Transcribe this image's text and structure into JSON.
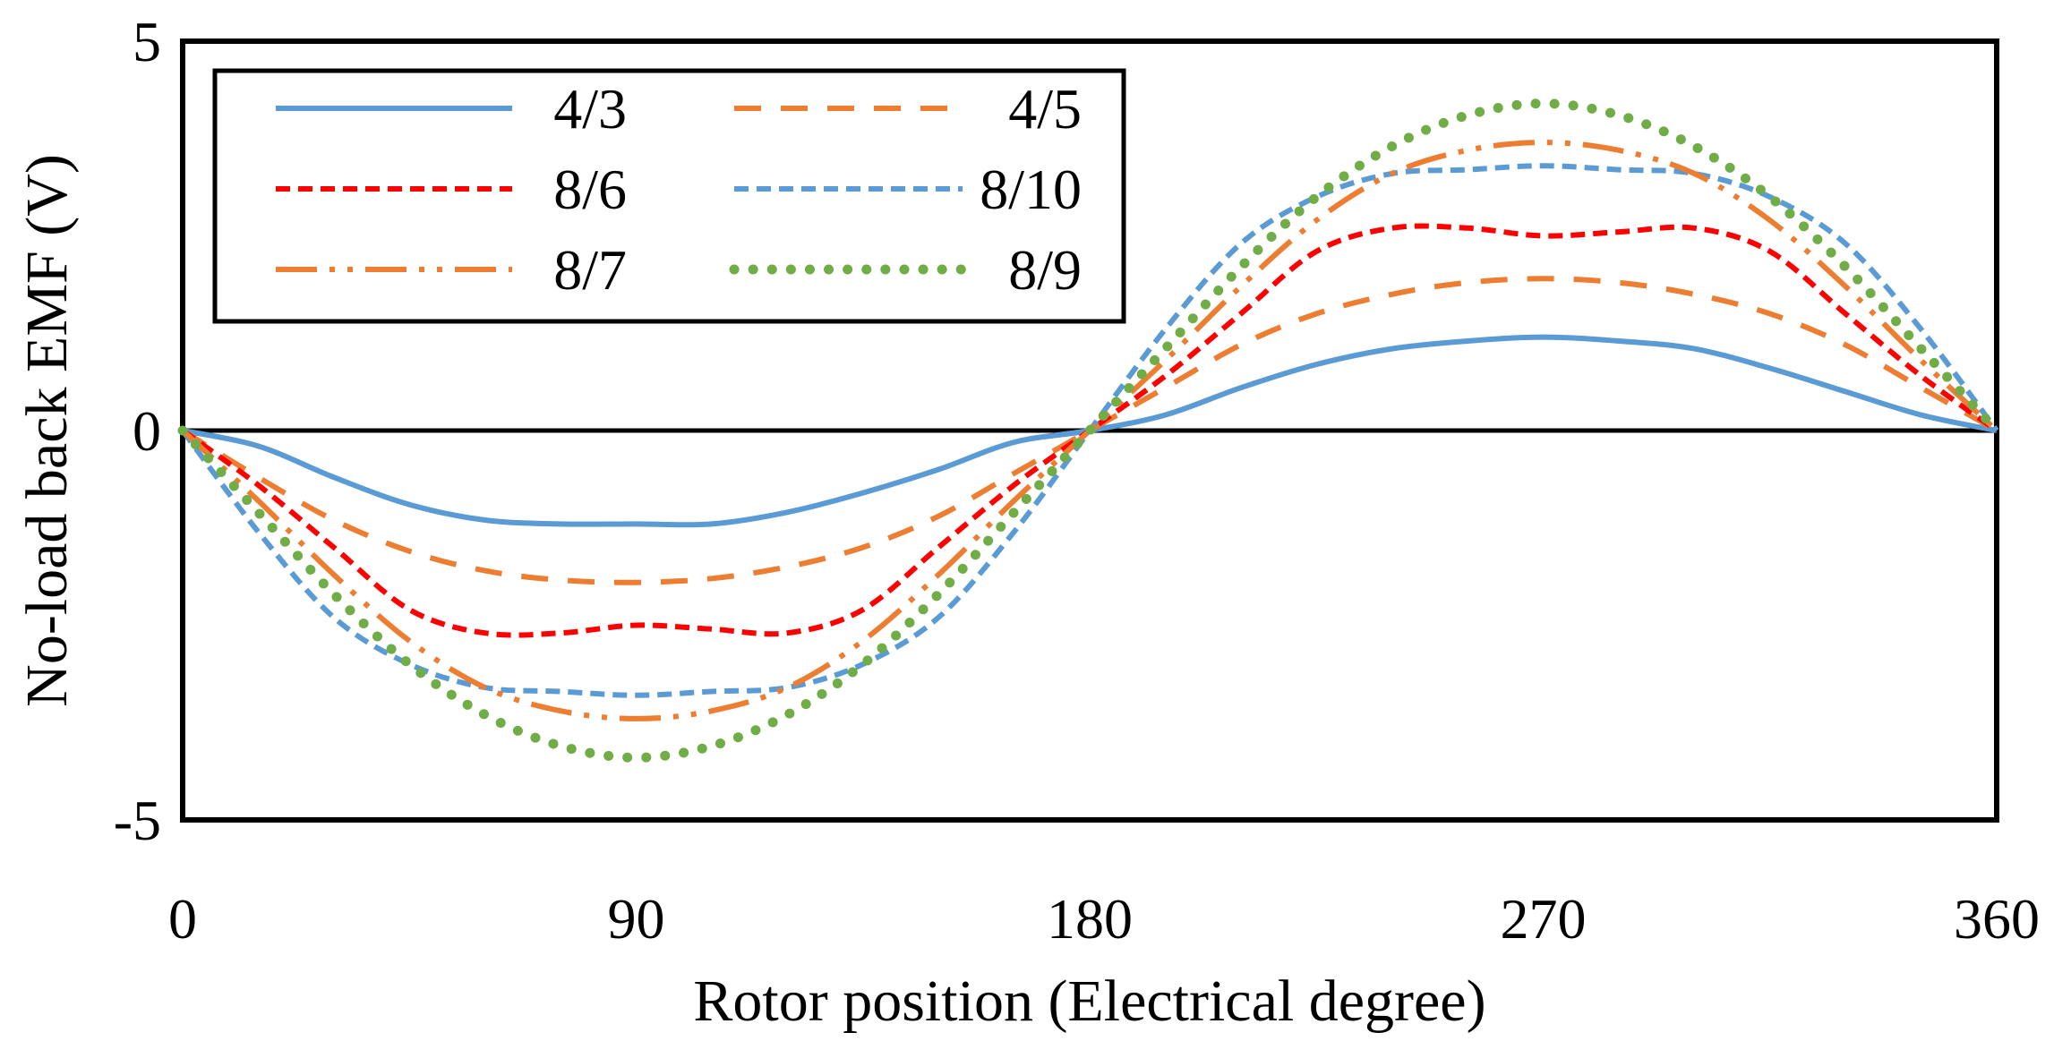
{
  "chart_data": {
    "type": "line",
    "title": "",
    "xlabel": "Rotor position (Electrical degree)",
    "ylabel": "No-load back EMF (V)",
    "xlim": [
      0,
      360
    ],
    "ylim": [
      -5,
      5
    ],
    "xticks": [
      "0",
      "90",
      "180",
      "270",
      "360"
    ],
    "yticks": [
      "5",
      "0",
      "-5"
    ],
    "xtick_values": [
      0,
      90,
      180,
      270,
      360
    ],
    "ytick_values": [
      5,
      0,
      -5
    ],
    "grid": false,
    "legend_position": "top-left",
    "x": [
      0,
      15,
      30,
      45,
      60,
      75,
      90,
      105,
      120,
      135,
      150,
      165,
      180,
      195,
      210,
      225,
      240,
      255,
      270,
      285,
      300,
      315,
      330,
      345,
      360
    ],
    "series": [
      {
        "name": "4/3",
        "color": "#5B9BD5",
        "dash": "solid",
        "values": [
          0,
          -0.2,
          -0.6,
          -0.95,
          -1.15,
          -1.2,
          -1.2,
          -1.2,
          -1.05,
          -0.8,
          -0.5,
          -0.15,
          0,
          0.2,
          0.55,
          0.85,
          1.05,
          1.15,
          1.2,
          1.15,
          1.05,
          0.8,
          0.5,
          0.2,
          0
        ]
      },
      {
        "name": "4/5",
        "color": "#ED7D31",
        "dash": "dash",
        "values": [
          0,
          -0.6,
          -1.15,
          -1.55,
          -1.8,
          -1.92,
          -1.95,
          -1.9,
          -1.75,
          -1.5,
          -1.1,
          -0.55,
          0,
          0.55,
          1.1,
          1.5,
          1.75,
          1.9,
          1.95,
          1.9,
          1.75,
          1.5,
          1.1,
          0.55,
          0
        ]
      },
      {
        "name": "8/6",
        "color": "#FF0000",
        "dash": "short-dash",
        "values": [
          0,
          -0.7,
          -1.5,
          -2.3,
          -2.6,
          -2.6,
          -2.5,
          -2.55,
          -2.6,
          -2.3,
          -1.5,
          -0.7,
          0,
          0.7,
          1.5,
          2.3,
          2.6,
          2.6,
          2.5,
          2.55,
          2.6,
          2.3,
          1.5,
          0.7,
          0
        ]
      },
      {
        "name": "8/10",
        "color": "#5B9BD5",
        "dash": "short-dash",
        "values": [
          0,
          -1.3,
          -2.4,
          -3.0,
          -3.3,
          -3.35,
          -3.4,
          -3.35,
          -3.3,
          -3.0,
          -2.4,
          -1.3,
          0,
          1.3,
          2.4,
          3.0,
          3.3,
          3.35,
          3.4,
          3.35,
          3.3,
          3.0,
          2.4,
          1.3,
          0
        ]
      },
      {
        "name": "8/7",
        "color": "#ED7D31",
        "dash": "dash-dot-dot",
        "values": [
          0,
          -0.9,
          -1.85,
          -2.7,
          -3.3,
          -3.6,
          -3.7,
          -3.6,
          -3.3,
          -2.7,
          -1.85,
          -0.9,
          0,
          0.9,
          1.85,
          2.7,
          3.3,
          3.6,
          3.7,
          3.6,
          3.3,
          2.7,
          1.85,
          0.9,
          0
        ]
      },
      {
        "name": "8/9",
        "color": "#70AD47",
        "dash": "dot",
        "values": [
          0,
          -1.05,
          -2.1,
          -3.0,
          -3.65,
          -4.05,
          -4.2,
          -4.05,
          -3.65,
          -3.0,
          -2.1,
          -1.05,
          0,
          1.05,
          2.1,
          3.0,
          3.65,
          4.05,
          4.2,
          4.05,
          3.65,
          3.0,
          2.1,
          1.05,
          0
        ]
      }
    ]
  }
}
